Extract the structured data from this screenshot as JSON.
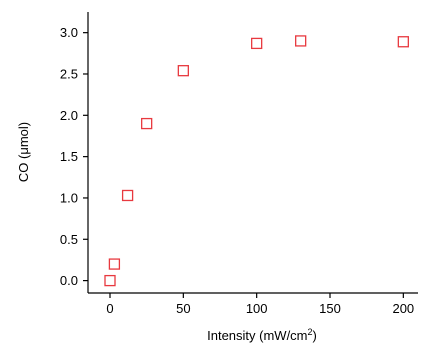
{
  "chart_data": {
    "type": "scatter",
    "title": "",
    "xlabel": "Intensity (mW/cm",
    "xlabel_sup": "2",
    "xlabel_tail": ")",
    "ylabel": "CO (μmol)",
    "xlim": [
      -15,
      210
    ],
    "ylim": [
      -0.15,
      3.25
    ],
    "xticks": [
      0,
      50,
      100,
      150,
      200
    ],
    "xtick_labels": [
      "0",
      "50",
      "100",
      "150",
      "200"
    ],
    "yticks": [
      0.0,
      0.5,
      1.0,
      1.5,
      2.0,
      2.5,
      3.0
    ],
    "ytick_labels": [
      "0.0",
      "0.5",
      "1.0",
      "1.5",
      "2.0",
      "2.5",
      "3.0"
    ],
    "grid": false,
    "marker": "open-square",
    "marker_color": "#e8393f",
    "series": [
      {
        "x": [
          0,
          3,
          12,
          25,
          50,
          100,
          130,
          200
        ],
        "y": [
          0.0,
          0.2,
          1.03,
          1.9,
          2.54,
          2.87,
          2.9,
          2.89
        ]
      }
    ]
  }
}
